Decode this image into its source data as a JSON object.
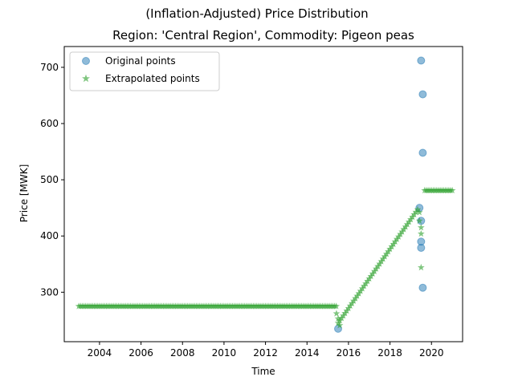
{
  "chart_data": {
    "type": "scatter",
    "suptitle": "(Inflation-Adjusted) Price Distribution",
    "title": "Region: 'Central Region', Commodity: Pigeon peas",
    "xlabel": "Time",
    "ylabel": "Price [MWK]",
    "xlim": [
      2002.3,
      2021.5
    ],
    "ylim": [
      212,
      737
    ],
    "x_ticks": [
      2004,
      2006,
      2008,
      2010,
      2012,
      2014,
      2016,
      2018,
      2020
    ],
    "x_tick_labels": [
      "2004",
      "2006",
      "2008",
      "2010",
      "2012",
      "2014",
      "2016",
      "2018",
      "2020"
    ],
    "y_ticks": [
      300,
      400,
      500,
      600,
      700
    ],
    "y_tick_labels": [
      "300",
      "400",
      "500",
      "600",
      "700"
    ],
    "grid": false,
    "legend_position": "upper left",
    "series": [
      {
        "name": "Original points",
        "marker": "circle",
        "color": "#1f77b4",
        "x": [
          2015.5,
          2019.42,
          2019.5,
          2019.5,
          2019.5,
          2019.5,
          2019.58,
          2019.58,
          2019.58
        ],
        "y": [
          235,
          450,
          712,
          427,
          390,
          379,
          652,
          548,
          308
        ]
      },
      {
        "name": "Extrapolated points",
        "marker": "star",
        "color": "#2ca02c",
        "segments": [
          {
            "x_start": 2003.0,
            "x_end": 2015.42,
            "step": 0.0833,
            "y_start": 275,
            "y_end": 275
          },
          {
            "x_start": 2015.5,
            "x_end": 2019.33,
            "step": 0.0833,
            "y_start": 245,
            "y_end": 447
          },
          {
            "x_start": 2019.67,
            "x_end": 2021.0,
            "step": 0.0833,
            "y_start": 481,
            "y_end": 481
          }
        ],
        "extra_points": {
          "x": [
            2015.42,
            2015.5,
            2015.58,
            2019.42,
            2019.42,
            2019.5,
            2019.5,
            2019.5
          ],
          "y": [
            262,
            253,
            241,
            442,
            427,
            415,
            404,
            344
          ]
        }
      }
    ]
  }
}
